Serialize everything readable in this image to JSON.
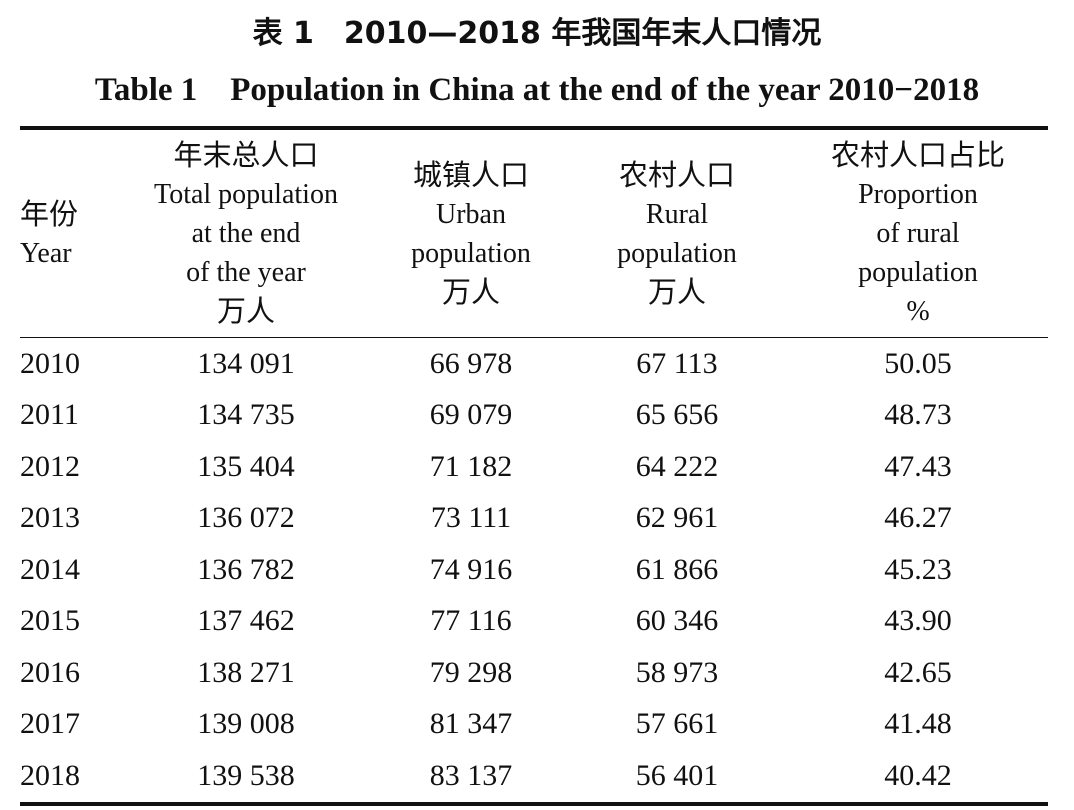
{
  "title": {
    "cn": "表 1　2010—2018 年我国年末人口情况",
    "en": "Table 1　Population in China at the end of the year 2010−2018"
  },
  "table": {
    "headers": [
      {
        "cn": "年份",
        "en_lines": [
          "Year"
        ],
        "unit": ""
      },
      {
        "cn": "年末总人口",
        "en_lines": [
          "Total population",
          "at the end",
          "of the year"
        ],
        "unit": "万人"
      },
      {
        "cn": "城镇人口",
        "en_lines": [
          "Urban",
          "population"
        ],
        "unit": "万人"
      },
      {
        "cn": "农村人口",
        "en_lines": [
          "Rural",
          "population"
        ],
        "unit": "万人"
      },
      {
        "cn": "农村人口占比",
        "en_lines": [
          "Proportion",
          "of rural",
          "population"
        ],
        "unit": "%"
      }
    ],
    "rows": [
      [
        "2010",
        "134 091",
        "66 978",
        "67 113",
        "50.05"
      ],
      [
        "2011",
        "134 735",
        "69 079",
        "65 656",
        "48.73"
      ],
      [
        "2012",
        "135 404",
        "71 182",
        "64 222",
        "47.43"
      ],
      [
        "2013",
        "136 072",
        "73 111",
        "62 961",
        "46.27"
      ],
      [
        "2014",
        "136 782",
        "74 916",
        "61 866",
        "45.23"
      ],
      [
        "2015",
        "137 462",
        "77 116",
        "60 346",
        "43.90"
      ],
      [
        "2016",
        "138 271",
        "79 298",
        "58 973",
        "42.65"
      ],
      [
        "2017",
        "139 008",
        "81 347",
        "57 661",
        "41.48"
      ],
      [
        "2018",
        "139 538",
        "83 137",
        "56 401",
        "40.42"
      ]
    ]
  }
}
